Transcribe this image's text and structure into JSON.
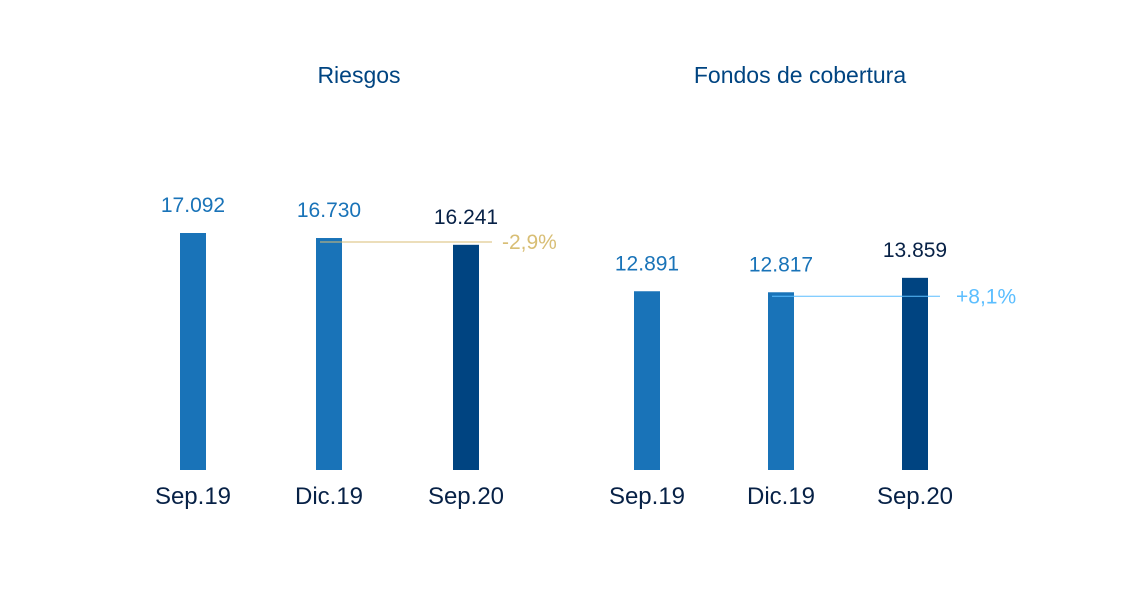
{
  "chart_data": [
    {
      "type": "bar",
      "title": "Riesgos",
      "categories": [
        "Sep.19",
        "Dic.19",
        "Sep.20"
      ],
      "values": [
        17092,
        16730,
        16241
      ],
      "value_labels": [
        "17.092",
        "16.730",
        "16.241"
      ],
      "change_label": "-2,9%",
      "xlabel": "",
      "ylabel": "",
      "ylim": [
        0,
        17092
      ],
      "grid": false
    },
    {
      "type": "bar",
      "title": "Fondos de cobertura",
      "categories": [
        "Sep.19",
        "Dic.19",
        "Sep.20"
      ],
      "values": [
        12891,
        12817,
        13859
      ],
      "value_labels": [
        "12.891",
        "12.817",
        "13.859"
      ],
      "change_label": "+8,1%",
      "xlabel": "",
      "ylabel": "",
      "ylim": [
        0,
        17092
      ],
      "grid": false
    }
  ],
  "colors": {
    "bar_previous": "#1973b8",
    "bar_current": "#004481",
    "label_previous": "#1973b8",
    "label_current": "#072146",
    "title": "#004481",
    "category": "#072146",
    "change_negative": "#d8be75",
    "change_positive": "#5bbeff"
  }
}
